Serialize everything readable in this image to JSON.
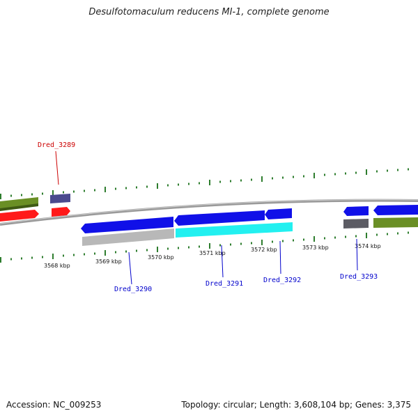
{
  "title": "Desulfotomaculum reducens MI-1, complete genome",
  "footer": {
    "accession": "Accession: NC_009253",
    "summary": "Topology: circular; Length: 3,608,104 bp; Genes: 3,375"
  },
  "ticks": [
    {
      "label": "3568 kbp"
    },
    {
      "label": "3569 kbp"
    },
    {
      "label": "3570 kbp"
    },
    {
      "label": "3571 kbp"
    },
    {
      "label": "3572 kbp"
    },
    {
      "label": "3573 kbp"
    },
    {
      "label": "3574 kbp"
    }
  ],
  "genes": [
    {
      "label": "Dred_3289",
      "color": "#cc0000"
    },
    {
      "label": "Dred_3290",
      "color": "#0000cc"
    },
    {
      "label": "Dred_3291",
      "color": "#0000cc"
    },
    {
      "label": "Dred_3292",
      "color": "#0000cc"
    },
    {
      "label": "Dred_3293",
      "color": "#0000cc"
    }
  ],
  "colors": {
    "backbone": "#8a8a8a",
    "gc_skew": "#2e7d2e",
    "cds_forward_red": "#ff1a1a",
    "cds_blue": "#1010e8",
    "cds_cyan": "#22f0f0",
    "cds_olive": "#6a8f25",
    "cds_slate": "#4a4a8e",
    "cds_gray": "#b8b8b8",
    "cds_darkgray": "#5c5c64"
  }
}
